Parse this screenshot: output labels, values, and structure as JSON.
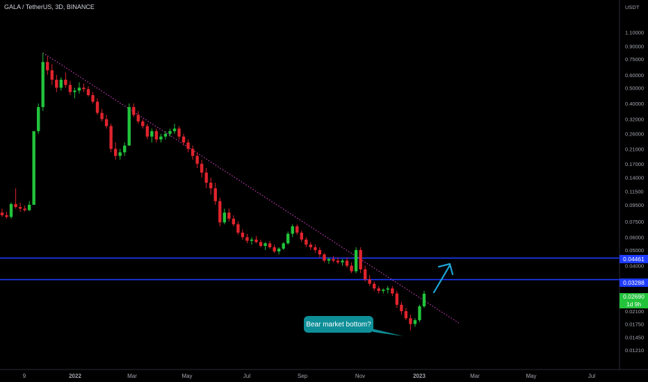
{
  "header": {
    "title": "GALA / TetherUS, 3D, BINANCE"
  },
  "annotation": {
    "text": "Bear market bottom?"
  },
  "colors": {
    "up": "#22c33b",
    "down": "#e0242d",
    "level": "#1e3bff",
    "trend": "#c93fbd",
    "arrow": "#1ea7d8",
    "bubble": "#0e8f98",
    "axis_text": "#a3a6af"
  },
  "price_labels": {
    "level_high": "0.04461",
    "level_low": "0.03288",
    "last": "0.02690",
    "countdown": "1d 9h"
  },
  "chart_data": {
    "type": "candlestick",
    "title": "GALA / TetherUS, 3D, BINANCE",
    "y_unit": "USDT",
    "y_scale": "log",
    "ylim": [
      0.011,
      1.2
    ],
    "y_ticks": [
      "1.10000",
      "0.90000",
      "0.75000",
      "0.60000",
      "0.50000",
      "0.40000",
      "0.32000",
      "0.26000",
      "0.21000",
      "0.17000",
      "0.14000",
      "0.11500",
      "0.09500",
      "0.07500",
      "0.06000",
      "0.05000",
      "0.04000",
      "0.02100",
      "0.01750",
      "0.01450",
      "0.01210"
    ],
    "x_ticks": [
      "9",
      "2022",
      "Mar",
      "May",
      "Jul",
      "Sep",
      "Nov",
      "2023",
      "Mar",
      "May",
      "Jul"
    ],
    "horizontal_levels": [
      0.04461,
      0.03288
    ],
    "last_price": 0.0269,
    "trendline": [
      [
        0.82,
        0.045
      ],
      [
        0.03,
        0.0175
      ]
    ],
    "candles": [
      [
        0.085,
        0.09,
        0.08,
        0.082
      ],
      [
        0.082,
        0.086,
        0.078,
        0.08
      ],
      [
        0.08,
        0.098,
        0.078,
        0.096
      ],
      [
        0.096,
        0.12,
        0.09,
        0.092
      ],
      [
        0.092,
        0.098,
        0.086,
        0.09
      ],
      [
        0.09,
        0.094,
        0.086,
        0.088
      ],
      [
        0.088,
        0.1,
        0.087,
        0.095
      ],
      [
        0.095,
        0.27,
        0.095,
        0.27
      ],
      [
        0.27,
        0.4,
        0.26,
        0.38
      ],
      [
        0.38,
        0.82,
        0.36,
        0.72
      ],
      [
        0.72,
        0.78,
        0.6,
        0.64
      ],
      [
        0.64,
        0.7,
        0.52,
        0.56
      ],
      [
        0.56,
        0.6,
        0.47,
        0.5
      ],
      [
        0.5,
        0.58,
        0.48,
        0.56
      ],
      [
        0.56,
        0.62,
        0.5,
        0.52
      ],
      [
        0.52,
        0.55,
        0.45,
        0.47
      ],
      [
        0.47,
        0.5,
        0.43,
        0.48
      ],
      [
        0.48,
        0.54,
        0.46,
        0.5
      ],
      [
        0.5,
        0.53,
        0.47,
        0.49
      ],
      [
        0.49,
        0.51,
        0.44,
        0.45
      ],
      [
        0.45,
        0.47,
        0.4,
        0.41
      ],
      [
        0.41,
        0.43,
        0.34,
        0.35
      ],
      [
        0.35,
        0.37,
        0.31,
        0.32
      ],
      [
        0.32,
        0.34,
        0.28,
        0.29
      ],
      [
        0.29,
        0.3,
        0.2,
        0.21
      ],
      [
        0.21,
        0.23,
        0.18,
        0.19
      ],
      [
        0.19,
        0.21,
        0.18,
        0.2
      ],
      [
        0.2,
        0.23,
        0.19,
        0.22
      ],
      [
        0.22,
        0.4,
        0.22,
        0.38
      ],
      [
        0.38,
        0.4,
        0.33,
        0.34
      ],
      [
        0.34,
        0.36,
        0.3,
        0.31
      ],
      [
        0.31,
        0.32,
        0.28,
        0.29
      ],
      [
        0.29,
        0.3,
        0.24,
        0.25
      ],
      [
        0.25,
        0.28,
        0.23,
        0.27
      ],
      [
        0.27,
        0.28,
        0.23,
        0.24
      ],
      [
        0.24,
        0.26,
        0.23,
        0.25
      ],
      [
        0.25,
        0.27,
        0.24,
        0.26
      ],
      [
        0.26,
        0.28,
        0.25,
        0.27
      ],
      [
        0.27,
        0.3,
        0.26,
        0.28
      ],
      [
        0.28,
        0.29,
        0.24,
        0.25
      ],
      [
        0.25,
        0.26,
        0.22,
        0.23
      ],
      [
        0.23,
        0.24,
        0.2,
        0.21
      ],
      [
        0.21,
        0.22,
        0.18,
        0.19
      ],
      [
        0.19,
        0.2,
        0.16,
        0.17
      ],
      [
        0.17,
        0.18,
        0.14,
        0.15
      ],
      [
        0.15,
        0.16,
        0.12,
        0.13
      ],
      [
        0.13,
        0.14,
        0.11,
        0.12
      ],
      [
        0.12,
        0.13,
        0.095,
        0.1
      ],
      [
        0.1,
        0.105,
        0.07,
        0.074
      ],
      [
        0.074,
        0.09,
        0.072,
        0.085
      ],
      [
        0.085,
        0.09,
        0.075,
        0.078
      ],
      [
        0.078,
        0.082,
        0.07,
        0.072
      ],
      [
        0.072,
        0.075,
        0.062,
        0.064
      ],
      [
        0.064,
        0.067,
        0.058,
        0.06
      ],
      [
        0.06,
        0.063,
        0.055,
        0.057
      ],
      [
        0.057,
        0.06,
        0.054,
        0.058
      ],
      [
        0.058,
        0.061,
        0.055,
        0.056
      ],
      [
        0.056,
        0.058,
        0.052,
        0.053
      ],
      [
        0.053,
        0.056,
        0.05,
        0.055
      ],
      [
        0.055,
        0.057,
        0.051,
        0.052
      ],
      [
        0.052,
        0.054,
        0.048,
        0.049
      ],
      [
        0.049,
        0.052,
        0.047,
        0.051
      ],
      [
        0.051,
        0.056,
        0.05,
        0.055
      ],
      [
        0.055,
        0.065,
        0.054,
        0.063
      ],
      [
        0.063,
        0.072,
        0.06,
        0.07
      ],
      [
        0.07,
        0.072,
        0.062,
        0.064
      ],
      [
        0.064,
        0.066,
        0.056,
        0.058
      ],
      [
        0.058,
        0.06,
        0.052,
        0.054
      ],
      [
        0.054,
        0.056,
        0.05,
        0.052
      ],
      [
        0.052,
        0.054,
        0.048,
        0.05
      ],
      [
        0.05,
        0.052,
        0.045,
        0.047
      ],
      [
        0.047,
        0.048,
        0.042,
        0.043
      ],
      [
        0.043,
        0.045,
        0.041,
        0.044
      ],
      [
        0.044,
        0.046,
        0.042,
        0.043
      ],
      [
        0.043,
        0.045,
        0.041,
        0.042
      ],
      [
        0.042,
        0.044,
        0.04,
        0.043
      ],
      [
        0.043,
        0.045,
        0.039,
        0.04
      ],
      [
        0.04,
        0.042,
        0.036,
        0.037
      ],
      [
        0.037,
        0.052,
        0.036,
        0.05
      ],
      [
        0.05,
        0.052,
        0.036,
        0.038
      ],
      [
        0.038,
        0.04,
        0.032,
        0.033
      ],
      [
        0.033,
        0.035,
        0.03,
        0.031
      ],
      [
        0.031,
        0.032,
        0.028,
        0.029
      ],
      [
        0.029,
        0.03,
        0.027,
        0.028
      ],
      [
        0.028,
        0.029,
        0.027,
        0.0285
      ],
      [
        0.0285,
        0.03,
        0.027,
        0.029
      ],
      [
        0.029,
        0.03,
        0.026,
        0.027
      ],
      [
        0.027,
        0.028,
        0.022,
        0.023
      ],
      [
        0.023,
        0.024,
        0.02,
        0.021
      ],
      [
        0.021,
        0.022,
        0.0185,
        0.019
      ],
      [
        0.019,
        0.02,
        0.016,
        0.0175
      ],
      [
        0.0175,
        0.019,
        0.0168,
        0.0185
      ],
      [
        0.0185,
        0.023,
        0.018,
        0.0225
      ],
      [
        0.0225,
        0.028,
        0.022,
        0.0269
      ]
    ]
  }
}
